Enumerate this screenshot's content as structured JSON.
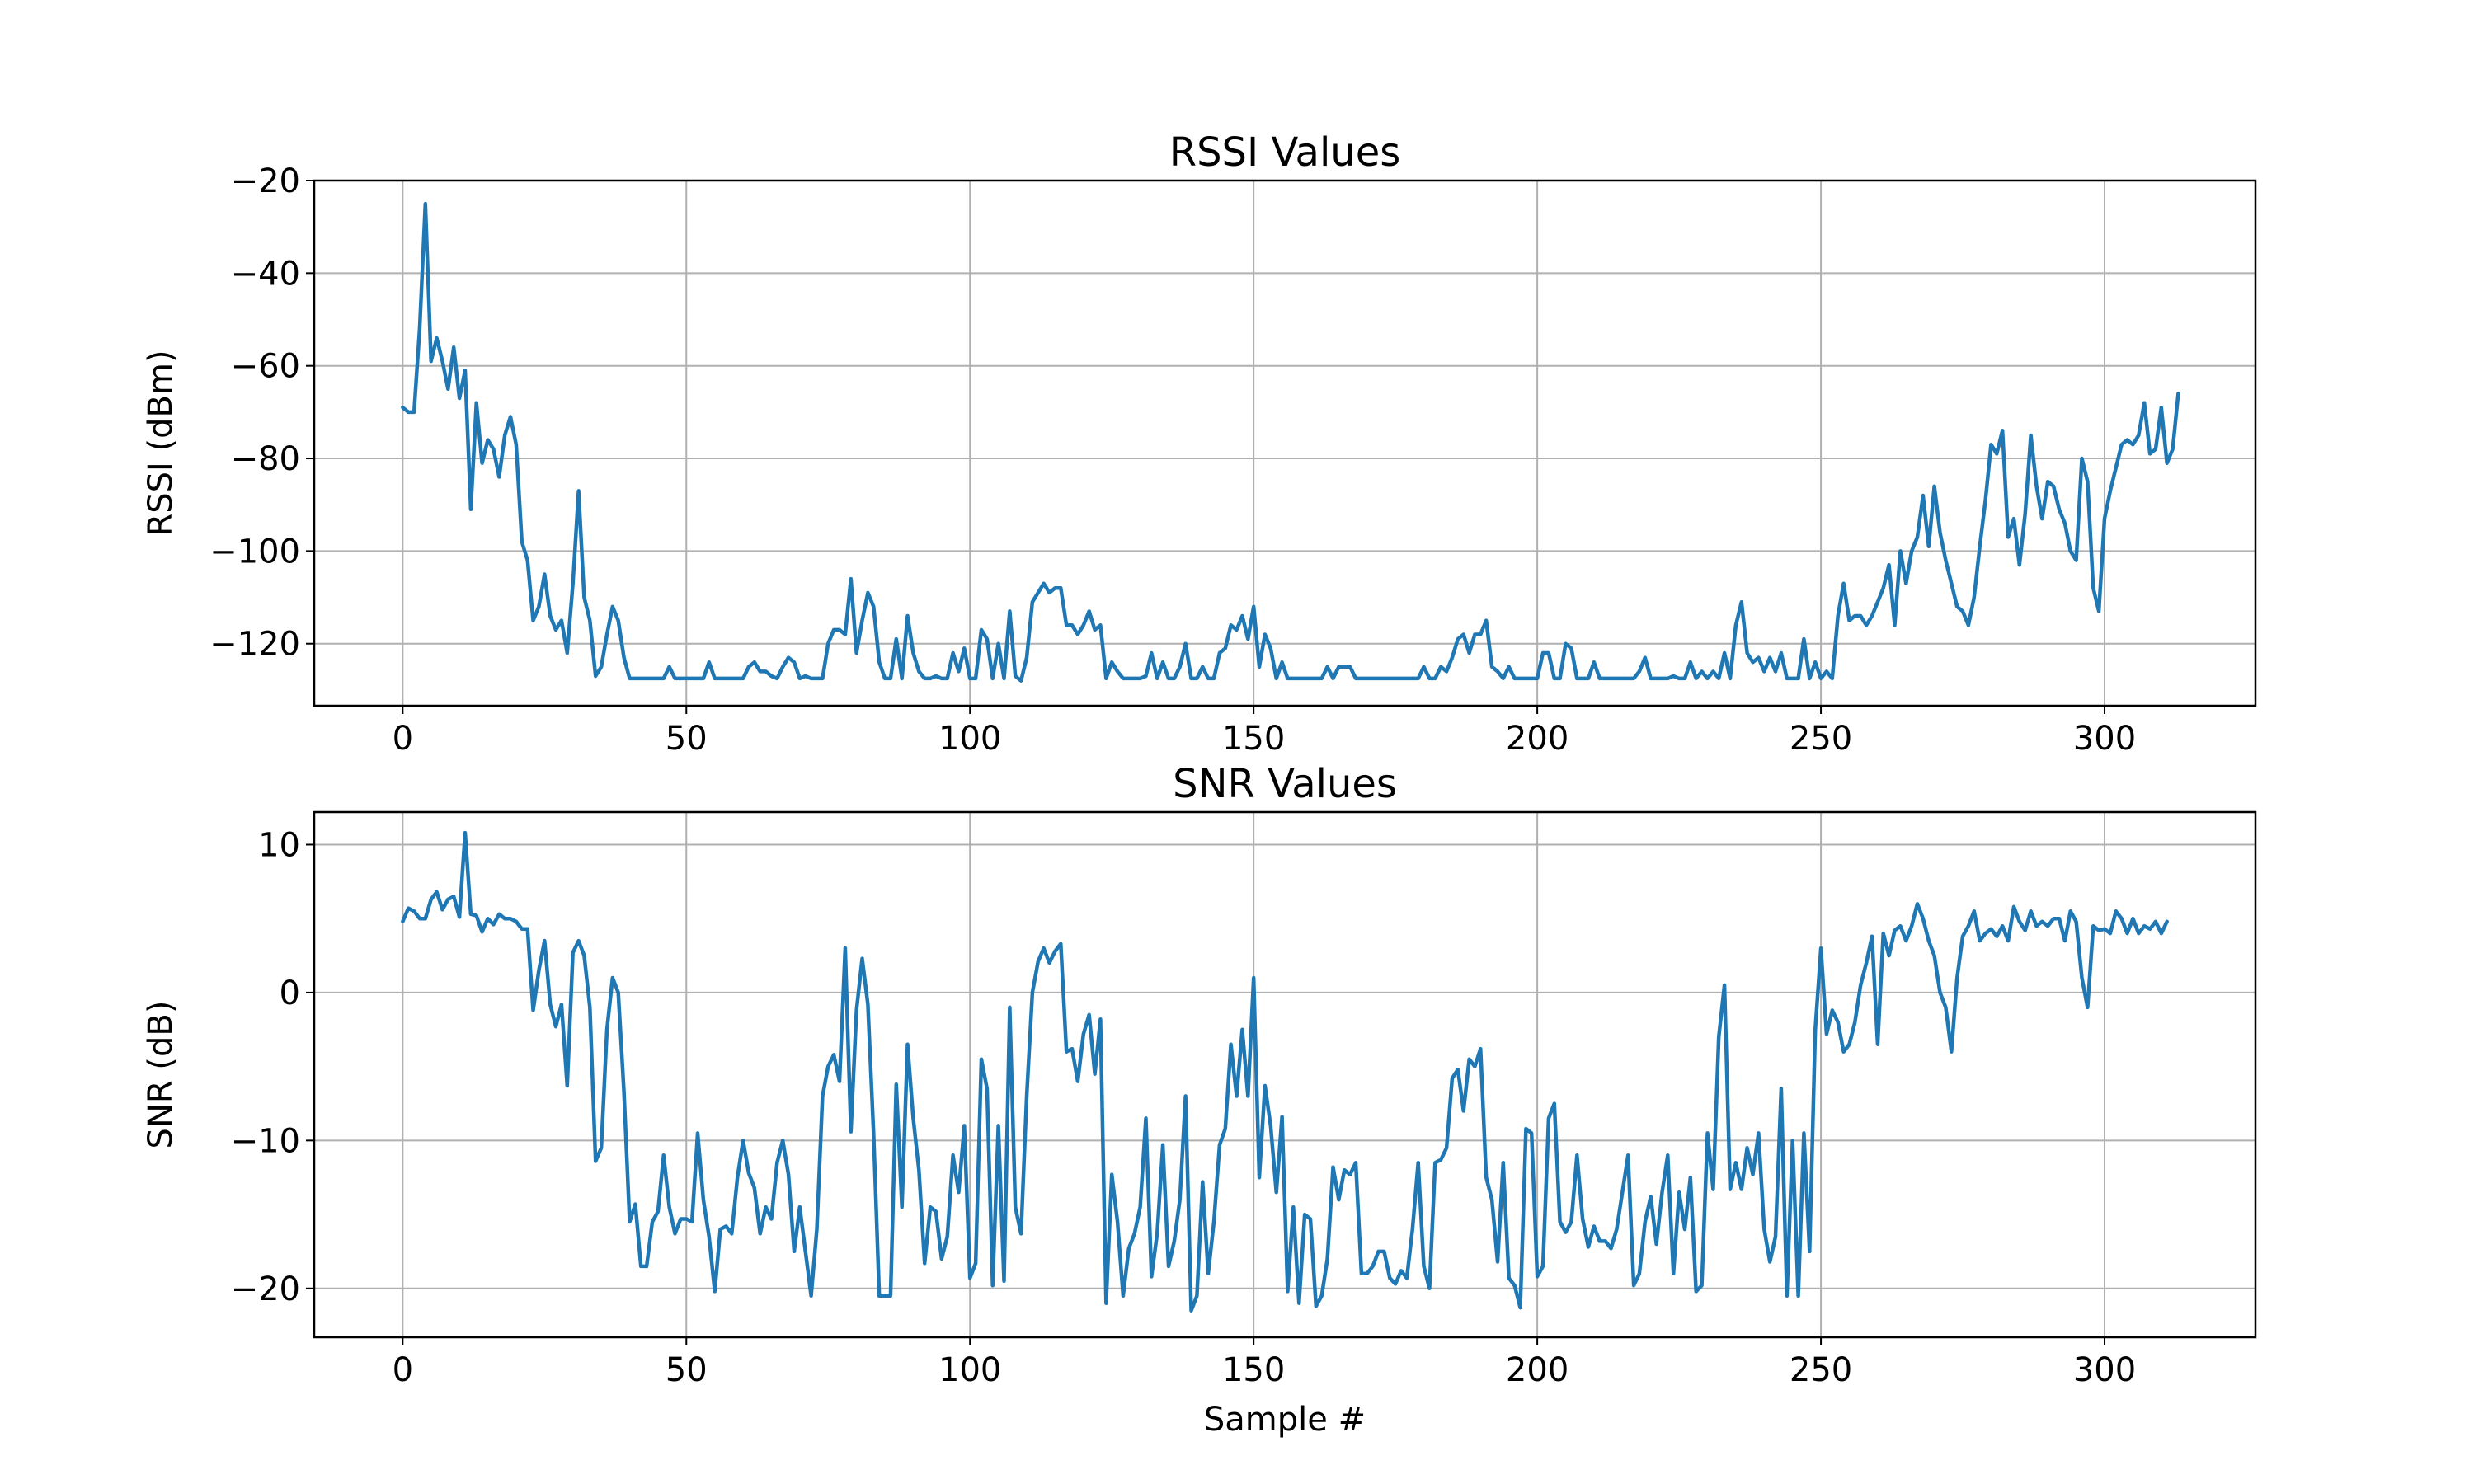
{
  "chart_data": [
    {
      "type": "line",
      "title": "RSSI Values",
      "xlabel": "",
      "ylabel": "RSSI (dBm)",
      "xlim": [
        -15.6,
        326.6
      ],
      "ylim": [
        -133.4,
        -20
      ],
      "xticks": [
        0,
        50,
        100,
        150,
        200,
        250,
        300
      ],
      "yticks": [
        -120,
        -100,
        -80,
        -60,
        -40,
        -20
      ],
      "xtick_labels": [
        "0",
        "50",
        "100",
        "150",
        "200",
        "250",
        "300"
      ],
      "ytick_labels": [
        "−120",
        "−100",
        "−80",
        "−60",
        "−40",
        "−20"
      ],
      "grid": true,
      "series": [
        {
          "name": "RSSI",
          "color": "#1f77b4",
          "x_start": 0,
          "values": [
            -69,
            -70,
            -70,
            -52,
            -25,
            -59,
            -54,
            -59,
            -65,
            -56,
            -67,
            -61,
            -91,
            -68,
            -81,
            -76,
            -78,
            -84,
            -75,
            -71,
            -77,
            -98,
            -102,
            -115,
            -112,
            -105,
            -114,
            -117,
            -115,
            -122,
            -107,
            -87,
            -110,
            -115,
            -127,
            -125,
            -118,
            -112,
            -115,
            -123,
            -127.5,
            -127.5,
            -127.5,
            -127.5,
            -127.5,
            -127.5,
            -127.5,
            -125,
            -127.5,
            -127.5,
            -127.5,
            -127.5,
            -127.5,
            -127.5,
            -124,
            -127.5,
            -127.5,
            -127.5,
            -127.5,
            -127.5,
            -127.5,
            -125,
            -124,
            -126,
            -126,
            -127,
            -127.5,
            -125,
            -123,
            -124,
            -127.5,
            -127,
            -127.5,
            -127.5,
            -127.5,
            -120,
            -117,
            -117,
            -118,
            -106,
            -122,
            -115,
            -109,
            -112,
            -124,
            -127.5,
            -127.5,
            -119,
            -127.5,
            -114,
            -122,
            -126,
            -127.5,
            -127.5,
            -127,
            -127.5,
            -127.5,
            -122,
            -126,
            -121,
            -127.5,
            -127.5,
            -117,
            -119,
            -127.5,
            -120,
            -127.5,
            -113,
            -127,
            -128,
            -123,
            -111,
            -109,
            -107,
            -109,
            -108,
            -108,
            -116,
            -116,
            -118,
            -116,
            -113,
            -117,
            -116,
            -127.5,
            -124,
            -126,
            -127.5,
            -127.5,
            -127.5,
            -127.5,
            -127,
            -122,
            -127.5,
            -124,
            -127.5,
            -127.5,
            -125,
            -120,
            -127.5,
            -127.5,
            -125,
            -127.5,
            -127.5,
            -122,
            -121,
            -116,
            -117,
            -114,
            -119,
            -112,
            -125,
            -118,
            -121,
            -127.5,
            -124,
            -127.5,
            -127.5,
            -127.5,
            -127.5,
            -127.5,
            -127.5,
            -127.5,
            -125,
            -127.5,
            -125,
            -125,
            -125,
            -127.5,
            -127.5,
            -127.5,
            -127.5,
            -127.5,
            -127.5,
            -127.5,
            -127.5,
            -127.5,
            -127.5,
            -127.5,
            -127.5,
            -125,
            -127.5,
            -127.5,
            -125,
            -126,
            -123,
            -119,
            -118,
            -122,
            -118,
            -118,
            -115,
            -125,
            -126,
            -127.5,
            -125,
            -127.5,
            -127.5,
            -127.5,
            -127.5,
            -127.5,
            -122,
            -122,
            -127.5,
            -127.5,
            -120,
            -121,
            -127.5,
            -127.5,
            -127.5,
            -124,
            -127.5,
            -127.5,
            -127.5,
            -127.5,
            -127.5,
            -127.5,
            -127.5,
            -126,
            -123,
            -127.5,
            -127.5,
            -127.5,
            -127.5,
            -127,
            -127.5,
            -127.5,
            -124,
            -127.5,
            -126,
            -127.5,
            -126,
            -127.5,
            -122,
            -127.5,
            -116,
            -111,
            -122,
            -124,
            -123,
            -126,
            -123,
            -126,
            -122,
            -127.5,
            -127.5,
            -127.5,
            -119,
            -127.5,
            -124,
            -127.5,
            -126,
            -127.5,
            -114,
            -107,
            -115,
            -114,
            -114,
            -116,
            -114,
            -111,
            -108,
            -103,
            -116,
            -100,
            -107,
            -100,
            -97,
            -88,
            -99,
            -86,
            -96,
            -102,
            -107,
            -112,
            -113,
            -116,
            -110,
            -99,
            -89,
            -77,
            -79,
            -74,
            -97,
            -93,
            -103,
            -92,
            -75,
            -86,
            -93,
            -85,
            -86,
            -91,
            -94,
            -100,
            -102,
            -80,
            -85,
            -108,
            -113,
            -93,
            -87,
            -82,
            -77,
            -76,
            -77,
            -75,
            -68,
            -79,
            -78,
            -69,
            -81,
            -78,
            -66
          ]
        }
      ]
    },
    {
      "type": "line",
      "title": "SNR Values",
      "xlabel": "Sample #",
      "ylabel": "SNR (dB)",
      "xlim": [
        -15.6,
        326.6
      ],
      "ylim": [
        -23.3,
        12.2
      ],
      "xticks": [
        0,
        50,
        100,
        150,
        200,
        250,
        300
      ],
      "yticks": [
        -20,
        -10,
        0,
        10
      ],
      "xtick_labels": [
        "0",
        "50",
        "100",
        "150",
        "200",
        "250",
        "300"
      ],
      "ytick_labels": [
        "−20",
        "−10",
        "0",
        "10"
      ],
      "grid": true,
      "series": [
        {
          "name": "SNR",
          "color": "#1f77b4",
          "x_start": 0,
          "values": [
            4.8,
            5.7,
            5.5,
            5.0,
            5.0,
            6.3,
            6.8,
            5.6,
            6.3,
            6.5,
            5.1,
            10.8,
            5.3,
            5.2,
            4.1,
            5.0,
            4.6,
            5.3,
            5.0,
            5.0,
            4.8,
            4.3,
            4.3,
            -1.2,
            1.5,
            3.5,
            -0.8,
            -2.3,
            -0.8,
            -6.3,
            2.7,
            3.5,
            2.5,
            -1.0,
            -11.4,
            -10.5,
            -2.5,
            1.0,
            0.0,
            -6.7,
            -15.5,
            -14.3,
            -18.5,
            -18.5,
            -15.5,
            -14.8,
            -11.0,
            -14.5,
            -16.3,
            -15.3,
            -15.3,
            -15.5,
            -9.5,
            -14.0,
            -16.5,
            -20.2,
            -16.0,
            -15.8,
            -16.3,
            -12.5,
            -10.0,
            -12.2,
            -13.2,
            -16.3,
            -14.5,
            -15.3,
            -11.5,
            -10.0,
            -12.3,
            -17.5,
            -14.5,
            -17.5,
            -20.5,
            -16.0,
            -7.0,
            -5.0,
            -4.2,
            -6.0,
            3.0,
            -9.4,
            -1.2,
            2.3,
            -0.8,
            -9.5,
            -20.5,
            -20.5,
            -20.5,
            -6.2,
            -14.5,
            -3.5,
            -8.5,
            -12.0,
            -18.3,
            -14.5,
            -14.8,
            -18.0,
            -16.5,
            -11.0,
            -13.5,
            -9.0,
            -19.3,
            -18.3,
            -4.5,
            -6.5,
            -19.8,
            -9.0,
            -19.5,
            -1.0,
            -14.5,
            -16.3,
            -7.0,
            0.0,
            2.1,
            3.0,
            2.0,
            2.8,
            3.3,
            -4.0,
            -3.8,
            -6.0,
            -2.8,
            -1.5,
            -5.5,
            -1.8,
            -21.0,
            -12.3,
            -15.5,
            -20.5,
            -17.3,
            -16.3,
            -14.5,
            -8.5,
            -19.2,
            -16.3,
            -10.3,
            -18.5,
            -16.8,
            -14.0,
            -7.0,
            -21.5,
            -20.5,
            -12.8,
            -19.0,
            -15.5,
            -10.3,
            -9.2,
            -3.5,
            -7.0,
            -2.5,
            -7.0,
            1.0,
            -12.5,
            -6.3,
            -9.0,
            -13.5,
            -8.4,
            -20.2,
            -14.5,
            -21.0,
            -15.0,
            -15.3,
            -21.2,
            -20.5,
            -18.0,
            -11.8,
            -14.0,
            -12.0,
            -12.3,
            -11.5,
            -19.0,
            -19.0,
            -18.5,
            -17.5,
            -17.5,
            -19.3,
            -19.7,
            -18.8,
            -19.3,
            -16.0,
            -11.5,
            -18.5,
            -20.0,
            -11.5,
            -11.3,
            -10.5,
            -5.8,
            -5.2,
            -8.0,
            -4.5,
            -5.0,
            -3.8,
            -12.5,
            -14.0,
            -18.2,
            -11.5,
            -19.3,
            -19.8,
            -21.3,
            -9.2,
            -9.5,
            -19.2,
            -18.5,
            -8.5,
            -7.5,
            -15.5,
            -16.2,
            -15.5,
            -11.0,
            -15.3,
            -17.2,
            -15.8,
            -16.8,
            -16.8,
            -17.3,
            -16.0,
            -13.5,
            -11.0,
            -19.8,
            -19.0,
            -15.5,
            -13.8,
            -17.0,
            -13.5,
            -11.0,
            -19.0,
            -13.5,
            -16.0,
            -12.5,
            -20.2,
            -19.8,
            -9.5,
            -13.3,
            -3.0,
            0.5,
            -13.3,
            -11.5,
            -13.3,
            -10.5,
            -12.3,
            -9.5,
            -16.0,
            -18.2,
            -16.5,
            -6.5,
            -20.5,
            -10.0,
            -20.5,
            -9.5,
            -17.5,
            -2.5,
            3.0,
            -2.8,
            -1.2,
            -2.0,
            -4.0,
            -3.5,
            -2.0,
            0.5,
            2.0,
            3.8,
            -3.5,
            4.0,
            2.5,
            4.2,
            4.5,
            3.5,
            4.5,
            6.0,
            5.0,
            3.5,
            2.5,
            0.0,
            -1.0,
            -4.0,
            1.0,
            3.8,
            4.5,
            5.5,
            3.5,
            4.0,
            4.3,
            3.8,
            4.5,
            3.5,
            5.8,
            4.8,
            4.2,
            5.5,
            4.5,
            4.8,
            4.5,
            5.0,
            5.0,
            3.5,
            5.5,
            4.8,
            1.0,
            -1.0,
            4.5,
            4.2,
            4.3,
            4.0,
            5.5,
            5.0,
            4.0,
            5.0,
            4.0,
            4.5,
            4.3,
            4.8,
            4.0,
            4.8
          ]
        }
      ]
    }
  ]
}
